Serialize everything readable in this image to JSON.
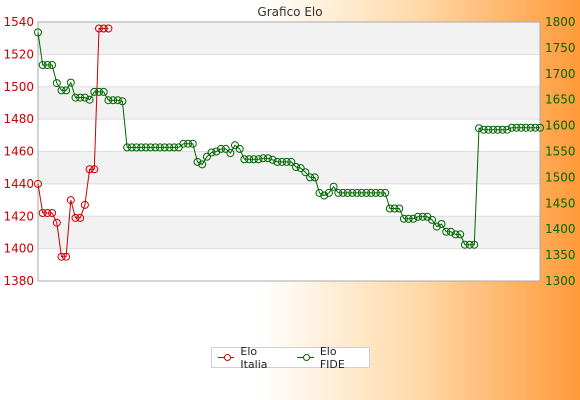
{
  "chart_data": {
    "type": "line",
    "title": "Grafico Elo",
    "grid": true,
    "legend_position": "bottom-center",
    "left_axis": {
      "ylim": [
        1380,
        1540
      ],
      "ticks": [
        1380,
        1400,
        1420,
        1440,
        1460,
        1480,
        1500,
        1520,
        1540
      ],
      "color": "#cc0000"
    },
    "right_axis": {
      "ylim": [
        1300,
        1800
      ],
      "ticks": [
        1300,
        1350,
        1400,
        1450,
        1500,
        1550,
        1600,
        1650,
        1700,
        1750,
        1800
      ],
      "color": "#006600"
    },
    "series": [
      {
        "name": "Elo Italia",
        "axis": "left",
        "color": "#cc0000",
        "values": [
          1440,
          1422,
          1422,
          1422,
          1416,
          1395,
          1395,
          1430,
          1419,
          1419,
          1427,
          1449,
          1449,
          1536,
          1536,
          1536
        ]
      },
      {
        "name": "Elo FIDE",
        "axis": "right",
        "color": "#006600",
        "values": [
          1780,
          1717,
          1717,
          1717,
          1682,
          1668,
          1668,
          1683,
          1654,
          1654,
          1654,
          1650,
          1665,
          1665,
          1665,
          1649,
          1649,
          1649,
          1647,
          1558,
          1558,
          1558,
          1558,
          1558,
          1558,
          1558,
          1558,
          1558,
          1558,
          1558,
          1558,
          1565,
          1565,
          1565,
          1530,
          1525,
          1540,
          1548,
          1550,
          1555,
          1555,
          1547,
          1562,
          1555,
          1535,
          1535,
          1535,
          1535,
          1537,
          1537,
          1534,
          1530,
          1530,
          1530,
          1530,
          1520,
          1518,
          1510,
          1500,
          1500,
          1470,
          1465,
          1470,
          1482,
          1470,
          1470,
          1470,
          1470,
          1470,
          1470,
          1470,
          1470,
          1470,
          1470,
          1470,
          1440,
          1440,
          1440,
          1420,
          1420,
          1420,
          1424,
          1424,
          1424,
          1418,
          1405,
          1410,
          1395,
          1395,
          1390,
          1390,
          1370,
          1370,
          1370,
          1595,
          1592,
          1592,
          1592,
          1592,
          1592,
          1592,
          1596,
          1596,
          1596,
          1596,
          1596,
          1596,
          1596
        ]
      }
    ]
  }
}
